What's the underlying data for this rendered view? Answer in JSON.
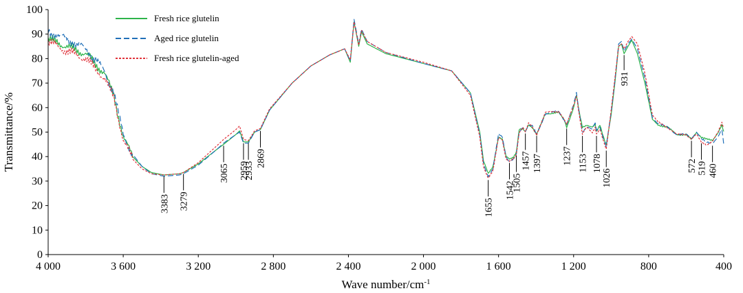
{
  "chart_data": {
    "type": "line",
    "xlabel": "Wave number/cm",
    "xlabel_sup": "-1",
    "ylabel": "Transmittance/%",
    "xlim": [
      4000,
      400
    ],
    "ylim": [
      0,
      100
    ],
    "x_ticks": [
      {
        "value": 4000,
        "label": "4 000"
      },
      {
        "value": 3600,
        "label": "3 600"
      },
      {
        "value": 3200,
        "label": "3 200"
      },
      {
        "value": 2800,
        "label": "2 800"
      },
      {
        "value": 2400,
        "label": "2 400"
      },
      {
        "value": 2000,
        "label": "2 000"
      },
      {
        "value": 1600,
        "label": "1 600"
      },
      {
        "value": 1200,
        "label": "1 200"
      },
      {
        "value": 800,
        "label": "800"
      },
      {
        "value": 400,
        "label": "400"
      }
    ],
    "y_ticks": [
      {
        "value": 0,
        "label": "0"
      },
      {
        "value": 10,
        "label": "10"
      },
      {
        "value": 20,
        "label": "20"
      },
      {
        "value": 30,
        "label": "30"
      },
      {
        "value": 40,
        "label": "40"
      },
      {
        "value": 50,
        "label": "50"
      },
      {
        "value": 60,
        "label": "60"
      },
      {
        "value": 70,
        "label": "70"
      },
      {
        "value": 80,
        "label": "80"
      },
      {
        "value": 90,
        "label": "90"
      },
      {
        "value": 100,
        "label": "100"
      }
    ],
    "grid": false,
    "legend_position": "top-left",
    "series": [
      {
        "name": "Fresh rice glutelin",
        "color": "#2db34a",
        "dash": "solid",
        "points": [
          [
            4000,
            88
          ],
          [
            3900,
            85
          ],
          [
            3800,
            82
          ],
          [
            3700,
            74
          ],
          [
            3650,
            65
          ],
          [
            3600,
            48
          ],
          [
            3550,
            40
          ],
          [
            3500,
            36
          ],
          [
            3450,
            33.5
          ],
          [
            3383,
            32.5
          ],
          [
            3300,
            33
          ],
          [
            3279,
            33.5
          ],
          [
            3200,
            37
          ],
          [
            3100,
            43
          ],
          [
            3065,
            45
          ],
          [
            3000,
            49
          ],
          [
            2980,
            50.5
          ],
          [
            2959,
            46
          ],
          [
            2933,
            46
          ],
          [
            2900,
            50
          ],
          [
            2869,
            51
          ],
          [
            2820,
            59
          ],
          [
            2700,
            70
          ],
          [
            2600,
            77
          ],
          [
            2500,
            81.5
          ],
          [
            2420,
            84
          ],
          [
            2390,
            78.5
          ],
          [
            2370,
            95
          ],
          [
            2345,
            85
          ],
          [
            2330,
            91
          ],
          [
            2300,
            86
          ],
          [
            2200,
            82
          ],
          [
            2000,
            78
          ],
          [
            1850,
            75
          ],
          [
            1750,
            66
          ],
          [
            1700,
            50
          ],
          [
            1680,
            38
          ],
          [
            1655,
            33
          ],
          [
            1630,
            36
          ],
          [
            1600,
            48
          ],
          [
            1580,
            47
          ],
          [
            1560,
            40
          ],
          [
            1542,
            39
          ],
          [
            1520,
            40
          ],
          [
            1505,
            42
          ],
          [
            1490,
            51
          ],
          [
            1470,
            51
          ],
          [
            1457,
            50
          ],
          [
            1440,
            53
          ],
          [
            1420,
            52
          ],
          [
            1397,
            49
          ],
          [
            1350,
            57.5
          ],
          [
            1280,
            58
          ],
          [
            1250,
            55
          ],
          [
            1237,
            52
          ],
          [
            1200,
            60
          ],
          [
            1185,
            65
          ],
          [
            1170,
            58
          ],
          [
            1153,
            52
          ],
          [
            1130,
            53
          ],
          [
            1100,
            52
          ],
          [
            1085,
            53
          ],
          [
            1078,
            50
          ],
          [
            1060,
            53
          ],
          [
            1040,
            48
          ],
          [
            1026,
            45
          ],
          [
            1000,
            57
          ],
          [
            980,
            70
          ],
          [
            960,
            85
          ],
          [
            945,
            86
          ],
          [
            931,
            82
          ],
          [
            910,
            85
          ],
          [
            890,
            87.5
          ],
          [
            860,
            82
          ],
          [
            820,
            70
          ],
          [
            780,
            55
          ],
          [
            750,
            53
          ],
          [
            700,
            52
          ],
          [
            650,
            49
          ],
          [
            600,
            49
          ],
          [
            572,
            47
          ],
          [
            545,
            50
          ],
          [
            519,
            48
          ],
          [
            490,
            47
          ],
          [
            460,
            46.5
          ],
          [
            430,
            50
          ],
          [
            410,
            53
          ],
          [
            400,
            50
          ]
        ]
      },
      {
        "name": "Aged rice glutelin",
        "color": "#1f6fb8",
        "dash": "dashed",
        "points": [
          [
            4000,
            91
          ],
          [
            3900,
            88
          ],
          [
            3800,
            84
          ],
          [
            3700,
            75
          ],
          [
            3650,
            66
          ],
          [
            3600,
            49
          ],
          [
            3550,
            41
          ],
          [
            3500,
            36
          ],
          [
            3450,
            33
          ],
          [
            3383,
            32
          ],
          [
            3300,
            32.5
          ],
          [
            3279,
            33
          ],
          [
            3200,
            36.5
          ],
          [
            3100,
            43
          ],
          [
            3065,
            45.5
          ],
          [
            3000,
            49
          ],
          [
            2980,
            50
          ],
          [
            2959,
            45.5
          ],
          [
            2933,
            45.5
          ],
          [
            2900,
            50
          ],
          [
            2869,
            51
          ],
          [
            2820,
            59
          ],
          [
            2700,
            70
          ],
          [
            2600,
            77
          ],
          [
            2500,
            81.5
          ],
          [
            2420,
            84
          ],
          [
            2390,
            79
          ],
          [
            2370,
            96
          ],
          [
            2345,
            86
          ],
          [
            2330,
            92
          ],
          [
            2300,
            87
          ],
          [
            2200,
            82.5
          ],
          [
            2000,
            78
          ],
          [
            1850,
            75
          ],
          [
            1750,
            66
          ],
          [
            1700,
            49
          ],
          [
            1680,
            37
          ],
          [
            1655,
            32
          ],
          [
            1630,
            35
          ],
          [
            1600,
            49
          ],
          [
            1580,
            48
          ],
          [
            1560,
            40
          ],
          [
            1542,
            38
          ],
          [
            1520,
            39
          ],
          [
            1505,
            41
          ],
          [
            1490,
            50
          ],
          [
            1470,
            52
          ],
          [
            1457,
            50.5
          ],
          [
            1440,
            53
          ],
          [
            1420,
            52.5
          ],
          [
            1397,
            49
          ],
          [
            1350,
            57.5
          ],
          [
            1280,
            58.5
          ],
          [
            1250,
            55
          ],
          [
            1237,
            53
          ],
          [
            1200,
            61
          ],
          [
            1185,
            66
          ],
          [
            1170,
            58
          ],
          [
            1153,
            50
          ],
          [
            1130,
            52
          ],
          [
            1100,
            51
          ],
          [
            1085,
            54
          ],
          [
            1078,
            51
          ],
          [
            1060,
            52
          ],
          [
            1040,
            47
          ],
          [
            1026,
            44
          ],
          [
            1000,
            58
          ],
          [
            980,
            71
          ],
          [
            960,
            86
          ],
          [
            945,
            87
          ],
          [
            931,
            83
          ],
          [
            910,
            86
          ],
          [
            890,
            88
          ],
          [
            860,
            84
          ],
          [
            820,
            72
          ],
          [
            780,
            56
          ],
          [
            750,
            53.5
          ],
          [
            700,
            52
          ],
          [
            650,
            49
          ],
          [
            600,
            49
          ],
          [
            572,
            47.5
          ],
          [
            545,
            50
          ],
          [
            519,
            47
          ],
          [
            490,
            46
          ],
          [
            460,
            45.5
          ],
          [
            430,
            48
          ],
          [
            410,
            51
          ],
          [
            400,
            45
          ]
        ]
      },
      {
        "name": "Fresh rice glutelin-aged",
        "color": "#e0323a",
        "dash": "dotted",
        "points": [
          [
            4000,
            87
          ],
          [
            3900,
            83
          ],
          [
            3800,
            80
          ],
          [
            3700,
            72
          ],
          [
            3650,
            64
          ],
          [
            3600,
            47
          ],
          [
            3550,
            39
          ],
          [
            3500,
            35
          ],
          [
            3450,
            33
          ],
          [
            3383,
            32.5
          ],
          [
            3300,
            33
          ],
          [
            3279,
            33.5
          ],
          [
            3200,
            37.5
          ],
          [
            3100,
            44.5
          ],
          [
            3065,
            47
          ],
          [
            3000,
            51
          ],
          [
            2980,
            52.5
          ],
          [
            2959,
            47
          ],
          [
            2933,
            46.5
          ],
          [
            2900,
            50.5
          ],
          [
            2869,
            51.5
          ],
          [
            2820,
            59.5
          ],
          [
            2700,
            70
          ],
          [
            2600,
            77
          ],
          [
            2500,
            81.5
          ],
          [
            2420,
            84
          ],
          [
            2390,
            79.5
          ],
          [
            2370,
            95
          ],
          [
            2345,
            85.5
          ],
          [
            2330,
            91.5
          ],
          [
            2300,
            87
          ],
          [
            2200,
            82.5
          ],
          [
            2000,
            78.5
          ],
          [
            1850,
            75
          ],
          [
            1750,
            65
          ],
          [
            1700,
            48
          ],
          [
            1680,
            36
          ],
          [
            1655,
            31
          ],
          [
            1630,
            34
          ],
          [
            1600,
            48
          ],
          [
            1580,
            47
          ],
          [
            1560,
            39
          ],
          [
            1542,
            38
          ],
          [
            1520,
            39
          ],
          [
            1505,
            41
          ],
          [
            1490,
            50
          ],
          [
            1470,
            52
          ],
          [
            1457,
            50
          ],
          [
            1440,
            53.5
          ],
          [
            1420,
            52
          ],
          [
            1397,
            49
          ],
          [
            1350,
            58
          ],
          [
            1280,
            58.5
          ],
          [
            1250,
            55
          ],
          [
            1237,
            53
          ],
          [
            1200,
            61
          ],
          [
            1185,
            65
          ],
          [
            1170,
            57
          ],
          [
            1153,
            49
          ],
          [
            1130,
            52
          ],
          [
            1100,
            50
          ],
          [
            1085,
            52
          ],
          [
            1078,
            49
          ],
          [
            1060,
            51
          ],
          [
            1040,
            46
          ],
          [
            1026,
            43
          ],
          [
            1000,
            59
          ],
          [
            980,
            72
          ],
          [
            960,
            85
          ],
          [
            945,
            86
          ],
          [
            931,
            84
          ],
          [
            910,
            87
          ],
          [
            890,
            89
          ],
          [
            860,
            86
          ],
          [
            820,
            74
          ],
          [
            780,
            57
          ],
          [
            750,
            54
          ],
          [
            700,
            52
          ],
          [
            650,
            49
          ],
          [
            600,
            49
          ],
          [
            572,
            47
          ],
          [
            545,
            49
          ],
          [
            519,
            46
          ],
          [
            490,
            45
          ],
          [
            460,
            46
          ],
          [
            430,
            50
          ],
          [
            410,
            54
          ],
          [
            400,
            52
          ]
        ]
      }
    ],
    "annotations": [
      {
        "label": "3383",
        "x": 3383,
        "y": 32.5
      },
      {
        "label": "3279",
        "x": 3279,
        "y": 33.5
      },
      {
        "label": "3065",
        "x": 3065,
        "y": 45
      },
      {
        "label": "2959",
        "x": 2959,
        "y": 46
      },
      {
        "label": "2933",
        "x": 2933,
        "y": 46
      },
      {
        "label": "2869",
        "x": 2869,
        "y": 51
      },
      {
        "label": "1655",
        "x": 1655,
        "y": 31
      },
      {
        "label": "1542",
        "x": 1542,
        "y": 38
      },
      {
        "label": "1505",
        "x": 1505,
        "y": 41
      },
      {
        "label": "1457",
        "x": 1457,
        "y": 50
      },
      {
        "label": "1397",
        "x": 1397,
        "y": 49
      },
      {
        "label": "1237",
        "x": 1237,
        "y": 52
      },
      {
        "label": "1153",
        "x": 1153,
        "y": 49
      },
      {
        "label": "1078",
        "x": 1078,
        "y": 49
      },
      {
        "label": "1026",
        "x": 1026,
        "y": 43
      },
      {
        "label": "931",
        "x": 931,
        "y": 82
      },
      {
        "label": "572",
        "x": 572,
        "y": 47
      },
      {
        "label": "519",
        "x": 519,
        "y": 46
      },
      {
        "label": "460",
        "x": 460,
        "y": 45
      }
    ]
  }
}
